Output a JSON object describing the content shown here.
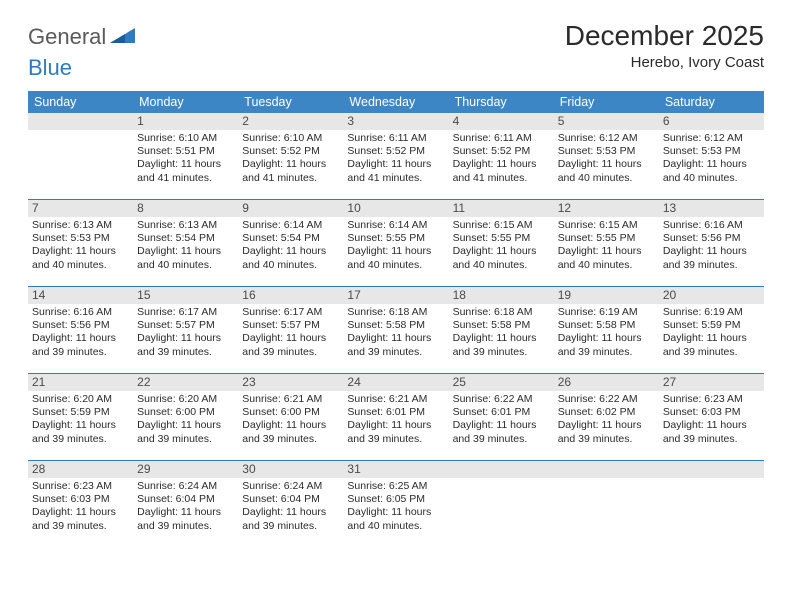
{
  "logo": {
    "part1": "General",
    "part2": "Blue"
  },
  "title": "December 2025",
  "location": "Herebo, Ivory Coast",
  "colors": {
    "header_bg": "#3d86c6",
    "header_text": "#ffffff",
    "daynum_bg": "#e7e7e7",
    "rule": "#2f7ac0",
    "text": "#2b2b2b"
  },
  "weekdays": [
    "Sunday",
    "Monday",
    "Tuesday",
    "Wednesday",
    "Thursday",
    "Friday",
    "Saturday"
  ],
  "weeks": [
    [
      null,
      {
        "n": "1",
        "sr": "6:10 AM",
        "ss": "5:51 PM",
        "dl": "11 hours and 41 minutes."
      },
      {
        "n": "2",
        "sr": "6:10 AM",
        "ss": "5:52 PM",
        "dl": "11 hours and 41 minutes."
      },
      {
        "n": "3",
        "sr": "6:11 AM",
        "ss": "5:52 PM",
        "dl": "11 hours and 41 minutes."
      },
      {
        "n": "4",
        "sr": "6:11 AM",
        "ss": "5:52 PM",
        "dl": "11 hours and 41 minutes."
      },
      {
        "n": "5",
        "sr": "6:12 AM",
        "ss": "5:53 PM",
        "dl": "11 hours and 40 minutes."
      },
      {
        "n": "6",
        "sr": "6:12 AM",
        "ss": "5:53 PM",
        "dl": "11 hours and 40 minutes."
      }
    ],
    [
      {
        "n": "7",
        "sr": "6:13 AM",
        "ss": "5:53 PM",
        "dl": "11 hours and 40 minutes."
      },
      {
        "n": "8",
        "sr": "6:13 AM",
        "ss": "5:54 PM",
        "dl": "11 hours and 40 minutes."
      },
      {
        "n": "9",
        "sr": "6:14 AM",
        "ss": "5:54 PM",
        "dl": "11 hours and 40 minutes."
      },
      {
        "n": "10",
        "sr": "6:14 AM",
        "ss": "5:55 PM",
        "dl": "11 hours and 40 minutes."
      },
      {
        "n": "11",
        "sr": "6:15 AM",
        "ss": "5:55 PM",
        "dl": "11 hours and 40 minutes."
      },
      {
        "n": "12",
        "sr": "6:15 AM",
        "ss": "5:55 PM",
        "dl": "11 hours and 40 minutes."
      },
      {
        "n": "13",
        "sr": "6:16 AM",
        "ss": "5:56 PM",
        "dl": "11 hours and 39 minutes."
      }
    ],
    [
      {
        "n": "14",
        "sr": "6:16 AM",
        "ss": "5:56 PM",
        "dl": "11 hours and 39 minutes."
      },
      {
        "n": "15",
        "sr": "6:17 AM",
        "ss": "5:57 PM",
        "dl": "11 hours and 39 minutes."
      },
      {
        "n": "16",
        "sr": "6:17 AM",
        "ss": "5:57 PM",
        "dl": "11 hours and 39 minutes."
      },
      {
        "n": "17",
        "sr": "6:18 AM",
        "ss": "5:58 PM",
        "dl": "11 hours and 39 minutes."
      },
      {
        "n": "18",
        "sr": "6:18 AM",
        "ss": "5:58 PM",
        "dl": "11 hours and 39 minutes."
      },
      {
        "n": "19",
        "sr": "6:19 AM",
        "ss": "5:58 PM",
        "dl": "11 hours and 39 minutes."
      },
      {
        "n": "20",
        "sr": "6:19 AM",
        "ss": "5:59 PM",
        "dl": "11 hours and 39 minutes."
      }
    ],
    [
      {
        "n": "21",
        "sr": "6:20 AM",
        "ss": "5:59 PM",
        "dl": "11 hours and 39 minutes."
      },
      {
        "n": "22",
        "sr": "6:20 AM",
        "ss": "6:00 PM",
        "dl": "11 hours and 39 minutes."
      },
      {
        "n": "23",
        "sr": "6:21 AM",
        "ss": "6:00 PM",
        "dl": "11 hours and 39 minutes."
      },
      {
        "n": "24",
        "sr": "6:21 AM",
        "ss": "6:01 PM",
        "dl": "11 hours and 39 minutes."
      },
      {
        "n": "25",
        "sr": "6:22 AM",
        "ss": "6:01 PM",
        "dl": "11 hours and 39 minutes."
      },
      {
        "n": "26",
        "sr": "6:22 AM",
        "ss": "6:02 PM",
        "dl": "11 hours and 39 minutes."
      },
      {
        "n": "27",
        "sr": "6:23 AM",
        "ss": "6:03 PM",
        "dl": "11 hours and 39 minutes."
      }
    ],
    [
      {
        "n": "28",
        "sr": "6:23 AM",
        "ss": "6:03 PM",
        "dl": "11 hours and 39 minutes."
      },
      {
        "n": "29",
        "sr": "6:24 AM",
        "ss": "6:04 PM",
        "dl": "11 hours and 39 minutes."
      },
      {
        "n": "30",
        "sr": "6:24 AM",
        "ss": "6:04 PM",
        "dl": "11 hours and 39 minutes."
      },
      {
        "n": "31",
        "sr": "6:25 AM",
        "ss": "6:05 PM",
        "dl": "11 hours and 40 minutes."
      },
      null,
      null,
      null
    ]
  ],
  "labels": {
    "sunrise": "Sunrise: ",
    "sunset": "Sunset: ",
    "daylight": "Daylight: "
  }
}
